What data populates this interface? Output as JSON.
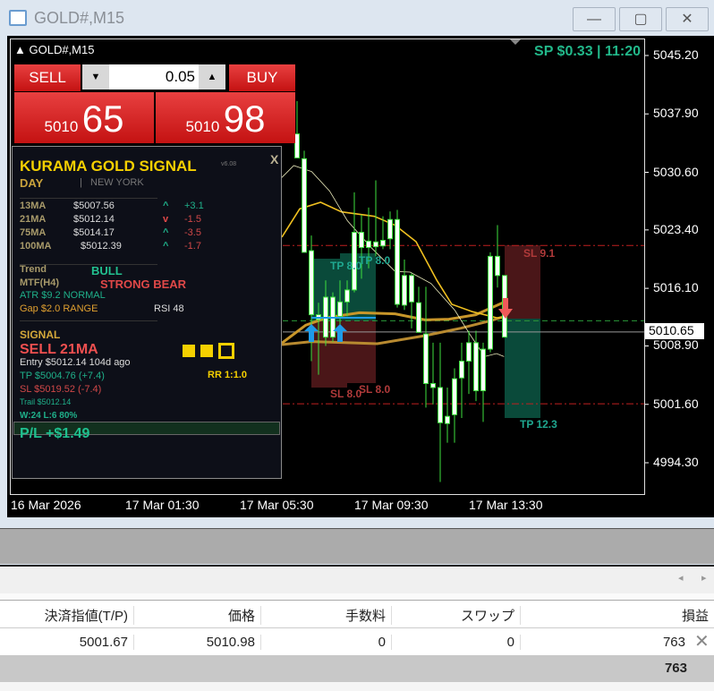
{
  "window": {
    "title": "GOLD#,M15",
    "minimize": "—",
    "maximize": "▢",
    "close": "✕"
  },
  "chart": {
    "symbol_label": "GOLD#,M15",
    "spread_time": "SP $0.33  |  11:20",
    "price_axis": [
      "5045.20",
      "5037.90",
      "5030.60",
      "5023.40",
      "5016.10",
      "5008.90",
      "5001.60",
      "4994.30"
    ],
    "current_price": "5010.65",
    "time_axis": [
      "16 Mar 2026",
      "17 Mar 01:30",
      "17 Mar 05:30",
      "17 Mar 09:30",
      "17 Mar 13:30"
    ],
    "trade_labels": {
      "tp1": "TP 8.0",
      "tp2": "TP 8.0",
      "sl1": "SL 8.0",
      "sl2": "SL 8.0",
      "sl3": "SL 9.1",
      "tp3": "TP 12.3"
    },
    "colors": {
      "bull_box": "#0a4a3a",
      "bear_box": "#4a1618",
      "buy_arrow": "#1e9be8",
      "sell_arrow": "#f05a5a",
      "candle_outline": "#3ee03e"
    }
  },
  "trade_panel": {
    "sell_label": "SELL",
    "buy_label": "BUY",
    "lot": "0.05",
    "sell_big": "5010",
    "sell_small": "65",
    "buy_big": "5010",
    "buy_small": "98"
  },
  "signal_panel": {
    "title": "KURAMA GOLD SIGNAL",
    "version": "v6.08",
    "close": "X",
    "session_day": "DAY",
    "session_sep": "|",
    "session_city": "NEW YORK",
    "ma": [
      {
        "name": "13MA",
        "value": "$5007.56",
        "arrow": "^",
        "delta": "+3.1"
      },
      {
        "name": "21MA",
        "value": "$5012.14",
        "arrow": "v",
        "delta": "-1.5"
      },
      {
        "name": "75MA",
        "value": "$5014.17",
        "arrow": "^",
        "delta": "-3.5"
      },
      {
        "name": "100MA",
        "value": "$5012.39",
        "arrow": "^",
        "delta": "-1.7"
      }
    ],
    "trend_label": "Trend",
    "trend_value": "BULL",
    "mtf_label": "MTF(H4)",
    "mtf_value": "STRONG BEAR",
    "atr": "ATR  $9.2  NORMAL",
    "gap": "Gap $2.0 RANGE",
    "rsi": "RSI 48",
    "signal_label": "SIGNAL",
    "signal": "SELL  21MA",
    "entry": "Entry  $5012.14   104d ago",
    "tp": "TP  $5004.76  (+7.4)",
    "sl": "SL  $5019.52  (-7.4)",
    "trail": "Trail  $5012.14",
    "winloss": "W:24 L:6  80%",
    "rr": "RR 1:1.0",
    "pl": "P/L   +$1.49",
    "strength_filled": 2,
    "strength_total": 3
  },
  "table": {
    "headers": [
      "決済指値(T/P)",
      "価格",
      "手数料",
      "スワップ",
      "損益"
    ],
    "row": [
      "5001.67",
      "5010.98",
      "0",
      "0",
      "763"
    ],
    "total": "763"
  },
  "chart_data": {
    "type": "candlestick",
    "timeframe": "M15",
    "ylim": [
      4994.3,
      5045.2
    ],
    "candles": [
      [
        5032.4,
        5039.5,
        5032.4,
        5035.4
      ],
      [
        5032.3,
        5033.3,
        5020.6,
        5020.6
      ],
      [
        5020.8,
        5022.7,
        5007.0,
        5012.8
      ],
      [
        5012.8,
        5014.3,
        5005.3,
        5012.2
      ],
      [
        5010.0,
        5017.1,
        5008.9,
        5015.0
      ],
      [
        5015.0,
        5015.6,
        5009.4,
        5010.0
      ],
      [
        5012.6,
        5017.1,
        5009.6,
        5014.4
      ],
      [
        5014.4,
        5017.1,
        5012.6,
        5015.9
      ],
      [
        5015.9,
        5028.1,
        5015.6,
        5023.1
      ],
      [
        5023.1,
        5025.3,
        5017.3,
        5021.2
      ],
      [
        5021.2,
        5026.2,
        5018.6,
        5022.0
      ],
      [
        5021.3,
        5029.6,
        5020.1,
        5021.9
      ],
      [
        5021.4,
        5025.1,
        5021.0,
        5022.1
      ],
      [
        5022.3,
        5025.7,
        5021.0,
        5024.7
      ],
      [
        5024.7,
        5025.9,
        5013.7,
        5014.1
      ],
      [
        5014.0,
        5019.7,
        5013.4,
        5017.7
      ],
      [
        5017.7,
        5018.0,
        5011.1,
        5014.4
      ],
      [
        5014.3,
        5016.3,
        5010.6,
        5010.6
      ],
      [
        5010.4,
        5016.3,
        5001.2,
        5004.2
      ],
      [
        5004.2,
        5009.3,
        5001.6,
        5003.7
      ],
      [
        5003.7,
        5009.3,
        4991.9,
        4999.3
      ],
      [
        4999.2,
        5003.7,
        4996.8,
        5000.1
      ],
      [
        5000.3,
        5006.1,
        4996.8,
        5004.8
      ],
      [
        5004.9,
        5009.3,
        4999.9,
        5007.0
      ],
      [
        5007.0,
        5010.8,
        5002.9,
        5009.3
      ],
      [
        5009.3,
        5010.8,
        5002.0,
        5003.3
      ],
      [
        5003.3,
        5009.3,
        4999.4,
        5008.5
      ],
      [
        5008.5,
        5020.6,
        5008.1,
        5020.1
      ],
      [
        5020.1,
        5024.0,
        5016.2,
        5017.7
      ],
      [
        5017.7,
        5017.7,
        5010.0,
        5010.0
      ]
    ],
    "levels": {
      "sl": 5021.45,
      "entry": 5012.05,
      "tp": 5001.67,
      "bid": 5010.65
    }
  }
}
